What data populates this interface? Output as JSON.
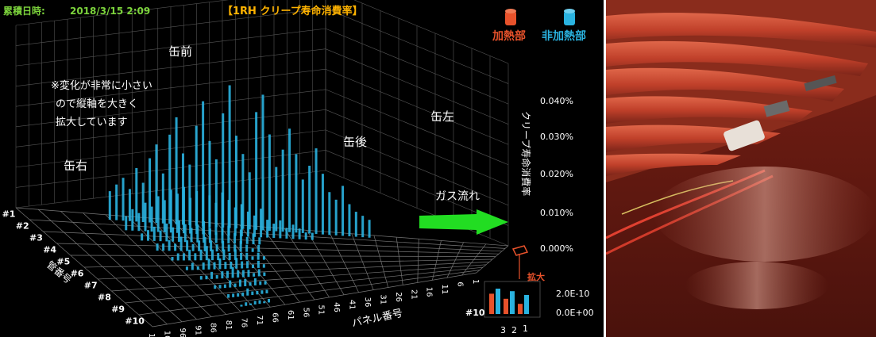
{
  "chart_data": {
    "type": "bar",
    "title": "【1RH クリープ寿命消費率】",
    "timestamp_label": "累積日時:",
    "timestamp_value": "2018/3/15 2:09",
    "zlabel": "クリープ寿命消費率",
    "zlim": [
      0,
      0.04
    ],
    "z_ticks": [
      "0.000%",
      "0.010%",
      "0.020%",
      "0.030%",
      "0.040%"
    ],
    "xlabel": "パネル番号",
    "x_ticks": [
      "1",
      "6",
      "11",
      "16",
      "21",
      "26",
      "31",
      "36",
      "41",
      "46",
      "51",
      "56",
      "61",
      "66",
      "71",
      "76",
      "81",
      "86",
      "91",
      "96",
      "101",
      "106"
    ],
    "ylabel": "管番号",
    "y_ticks": [
      "#1",
      "#2",
      "#3",
      "#4",
      "#5",
      "#6",
      "#7",
      "#8",
      "#9",
      "#10"
    ],
    "legend": [
      "加熱部",
      "非加熱部"
    ],
    "colors": {
      "heated": "#e8522b",
      "non_heated": "#2ab3e0",
      "title": "#ffb300",
      "timestamp": "#7cd33c",
      "arrow": "#22dd22"
    },
    "annotations": {
      "note": [
        "※変化が非常に小さい",
        "ので縦軸を大きく",
        "拡大しています"
      ],
      "front": "缶前",
      "right": "缶右",
      "rear": "缶後",
      "left": "缶左",
      "gas_flow": "ガス流れ"
    },
    "series": [
      {
        "name": "非加熱部",
        "rows": [
          {
            "tube": "#1",
            "values": [
              0.008,
              0.01,
              0.012,
              0.009,
              0.015,
              0.011,
              0.018,
              0.022,
              0.014,
              0.025,
              0.03,
              0.02,
              0.017,
              0.028,
              0.035,
              0.024,
              0.019,
              0.032,
              0.04,
              0.026,
              0.021,
              0.016,
              0.033,
              0.038,
              0.027,
              0.018,
              0.023,
              0.029,
              0.022,
              0.015,
              0.019,
              0.024,
              0.017,
              0.012,
              0.01,
              0.014,
              0.009,
              0.007,
              0.006,
              0.005
            ]
          },
          {
            "tube": "#2",
            "values": [
              0.004,
              0.006,
              0.005,
              0.008,
              0.007,
              0.01,
              0.009,
              0.012,
              0.011,
              0.013,
              0.01,
              0.012,
              0.014,
              0.011,
              0.009,
              0.012,
              0.01,
              0.008,
              0.009,
              0.007,
              0.006,
              0.008,
              0.005,
              0.004,
              0.005,
              0.003,
              0.004,
              0.003,
              0.002,
              0.002
            ]
          },
          {
            "tube": "#3",
            "values": [
              0.002,
              0.003,
              0.004,
              0.003,
              0.005,
              0.004,
              0.006,
              0.005,
              0.004,
              0.005,
              0.006,
              0.004,
              0.003,
              0.004,
              0.005,
              0.003,
              0.004,
              0.002,
              0.003,
              0.002
            ]
          },
          {
            "tube": "#4",
            "values": [
              0.002,
              0.002,
              0.003,
              0.002,
              0.004,
              0.003,
              0.002,
              0.003,
              0.004,
              0.003,
              0.002,
              0.003,
              0.002,
              0.002,
              0.003,
              0.002,
              0.001,
              0.002
            ]
          },
          {
            "tube": "#5",
            "values": [
              0.001,
              0.002,
              0.002,
              0.003,
              0.002,
              0.003,
              0.004,
              0.003,
              0.002,
              0.003,
              0.002,
              0.003,
              0.002,
              0.002,
              0.001,
              0.002,
              0.001
            ]
          },
          {
            "tube": "#6",
            "values": [
              0.001,
              0.002,
              0.001,
              0.002,
              0.003,
              0.002,
              0.003,
              0.002,
              0.002,
              0.003,
              0.002,
              0.002,
              0.001,
              0.002,
              0.001
            ]
          },
          {
            "tube": "#7",
            "values": [
              0.001,
              0.001,
              0.002,
              0.001,
              0.002,
              0.002,
              0.003,
              0.002,
              0.002,
              0.002,
              0.001,
              0.002,
              0.001
            ]
          },
          {
            "tube": "#8",
            "values": [
              0.001,
              0.001,
              0.001,
              0.002,
              0.001,
              0.002,
              0.002,
              0.001,
              0.002,
              0.001,
              0.001
            ]
          },
          {
            "tube": "#9",
            "values": [
              0.001,
              0.001,
              0.001,
              0.001,
              0.002,
              0.001,
              0.001,
              0.001,
              0.001
            ]
          },
          {
            "tube": "#10",
            "values": [
              0.0005,
              0.001,
              0.0005,
              0.001,
              0.001,
              0.0005,
              0.001
            ]
          }
        ]
      }
    ],
    "inset": {
      "label": "拡大",
      "z_ticks": [
        "2.0E-10",
        "0.0E+00"
      ],
      "x_ticks": [
        "3",
        "2",
        "1"
      ],
      "row_label": "#10",
      "heated": [
        1.6e-10,
        1.2e-10,
        8e-11
      ],
      "non_heated": [
        2e-10,
        1.8e-10,
        1.5e-10
      ]
    }
  }
}
